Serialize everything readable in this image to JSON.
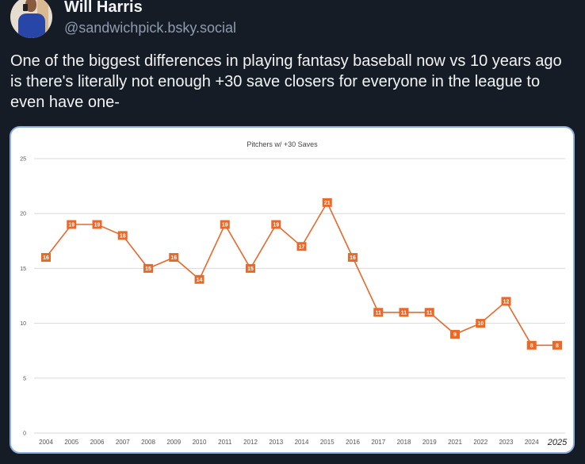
{
  "post": {
    "author": {
      "name": "Will Harris",
      "handle": "@sandwichpick.bsky.social"
    },
    "text": "One of the biggest differences in playing fantasy baseball now vs 10 years ago is there's literally not enough +30 save closers for everyone in the league to even have one-"
  },
  "colors": {
    "background": "#161c26",
    "card_border": "#8fb0de",
    "series": "#e8692a",
    "gridline": "#d9d9d9"
  },
  "chart_data": {
    "type": "line",
    "title": "Pitchers w/ +30 Saves",
    "xlabel": "",
    "ylabel": "",
    "categories": [
      "2004",
      "2005",
      "2006",
      "2007",
      "2008",
      "2009",
      "2010",
      "2011",
      "2012",
      "2013",
      "2014",
      "2015",
      "2016",
      "2017",
      "2018",
      "2019",
      "2021",
      "2022",
      "2023",
      "2024",
      "2025"
    ],
    "series": [
      {
        "name": "Pitchers w/ +30 Saves",
        "values": [
          16,
          19,
          19,
          18,
          15,
          16,
          14,
          19,
          15,
          19,
          17,
          21,
          16,
          11,
          11,
          11,
          9,
          10,
          12,
          8,
          8
        ]
      }
    ],
    "ylim": [
      0,
      25
    ],
    "yticks": [
      0,
      5,
      10,
      15,
      20,
      25
    ],
    "grid": true,
    "legend": "none",
    "data_labels": true
  }
}
